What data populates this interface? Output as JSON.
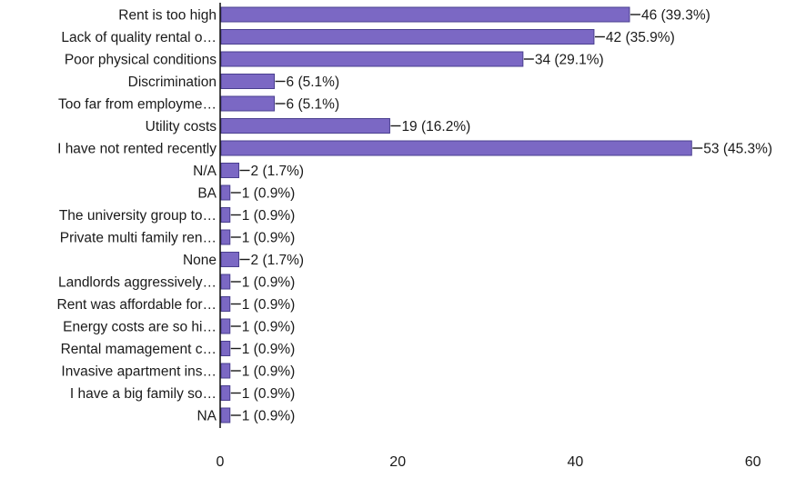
{
  "chart_data": {
    "type": "bar",
    "orientation": "horizontal",
    "categories": [
      "Rent is too high",
      "Lack of quality rental o…",
      "Poor physical conditions",
      "Discrimination",
      "Too far from employme…",
      "Utility costs",
      "I have not rented recently",
      "N/A",
      "BA",
      "The university group to…",
      "Private multi family ren…",
      "None",
      "Landlords aggressively…",
      "Rent was affordable for…",
      "Energy costs are so hi…",
      "Rental mamagement c…",
      "Invasive apartment ins…",
      "I have a big family so…",
      "NA"
    ],
    "values": [
      46,
      42,
      34,
      6,
      6,
      19,
      53,
      2,
      1,
      1,
      1,
      2,
      1,
      1,
      1,
      1,
      1,
      1,
      1
    ],
    "data_labels": [
      "46 (39.3%)",
      "42 (35.9%)",
      "34 (29.1%)",
      "6 (5.1%)",
      "6 (5.1%)",
      "19 (16.2%)",
      "53 (45.3%)",
      "2 (1.7%)",
      "1 (0.9%)",
      "1 (0.9%)",
      "1 (0.9%)",
      "2 (1.7%)",
      "1 (0.9%)",
      "1 (0.9%)",
      "1 (0.9%)",
      "1 (0.9%)",
      "1 (0.9%)",
      "1 (0.9%)",
      "1 (0.9%)"
    ],
    "xticks": [
      "0",
      "20",
      "40",
      "60"
    ],
    "xlim": [
      0,
      60
    ],
    "title": "",
    "xlabel": "",
    "ylabel": "",
    "grid": false,
    "legend": "none",
    "bar_color": "#7b68c4",
    "bar_edge_color": "#4a3f8f"
  }
}
